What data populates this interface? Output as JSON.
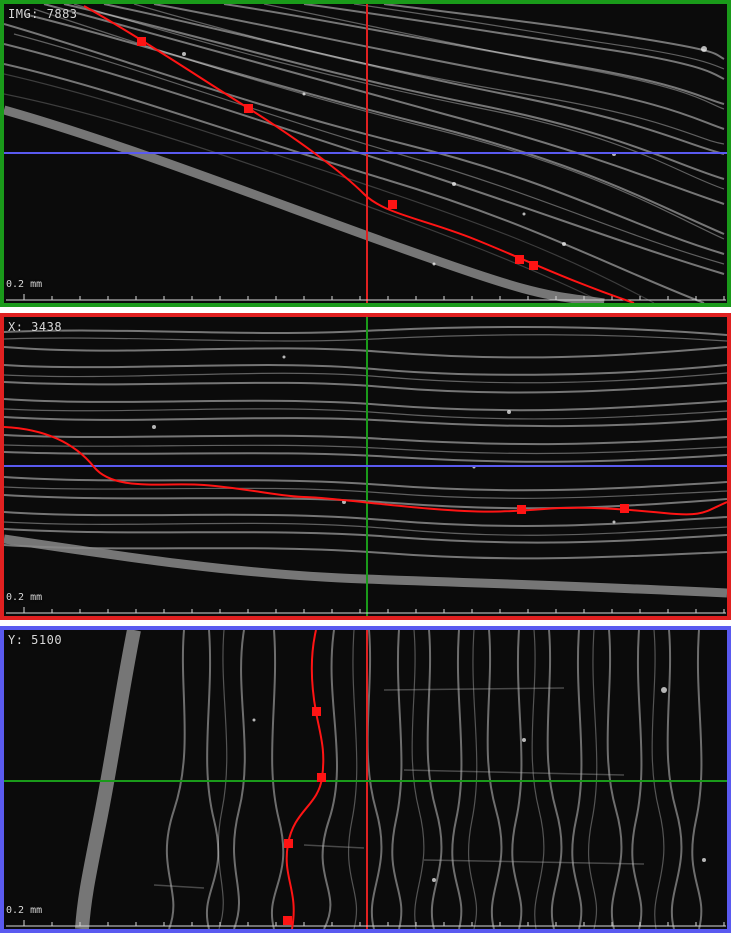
{
  "colors": {
    "top_frame": "#1a9a1a",
    "mid_frame": "#e02020",
    "bot_frame": "#5a5af0",
    "trace": "#ff1414",
    "background": "#0b0b0b",
    "fiber": "#cfcfcf"
  },
  "views": {
    "top": {
      "label": "IMG: 7883",
      "scale_label": "0.2 mm"
    },
    "middle": {
      "label": "X: 3438",
      "scale_label": "0.2 mm"
    },
    "bottom": {
      "label": "Y: 5100",
      "scale_label": "0.2 mm"
    }
  }
}
